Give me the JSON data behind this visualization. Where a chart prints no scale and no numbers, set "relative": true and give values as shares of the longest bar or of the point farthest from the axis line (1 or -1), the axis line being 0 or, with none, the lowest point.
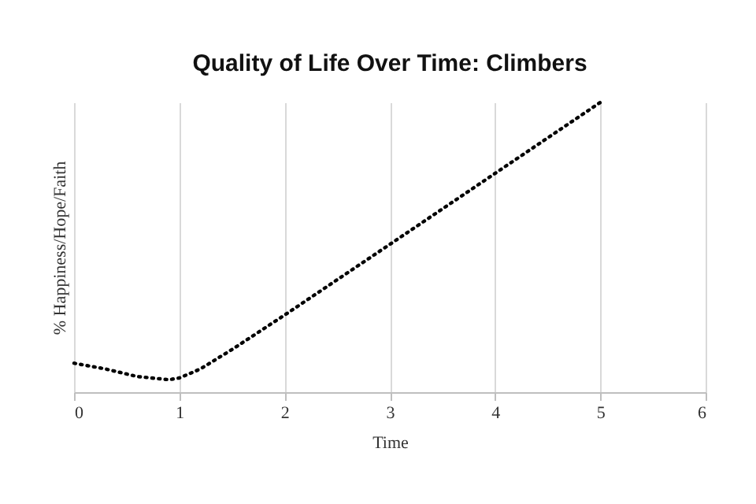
{
  "chart_data": {
    "type": "line",
    "title": "Quality of Life Over Time: Climbers",
    "xlabel": "Time",
    "ylabel": "% Happiness/Hope/Faith",
    "relative": true,
    "x": [
      0,
      0.3,
      0.6,
      0.9,
      1.0,
      1.2,
      1.5,
      2,
      3,
      4,
      5
    ],
    "series": [
      {
        "color": "#000000",
        "values": [
          0.1,
          0.08,
          0.054,
          0.043,
          0.049,
          0.08,
          0.147,
          0.266,
          0.51,
          0.755,
          1.0
        ]
      }
    ],
    "xlim": [
      0,
      6
    ],
    "xticks": [
      0,
      1,
      2,
      3,
      4,
      5,
      6
    ],
    "grid": "x",
    "line_style": "dotted",
    "marker": "none",
    "legend": false
  }
}
